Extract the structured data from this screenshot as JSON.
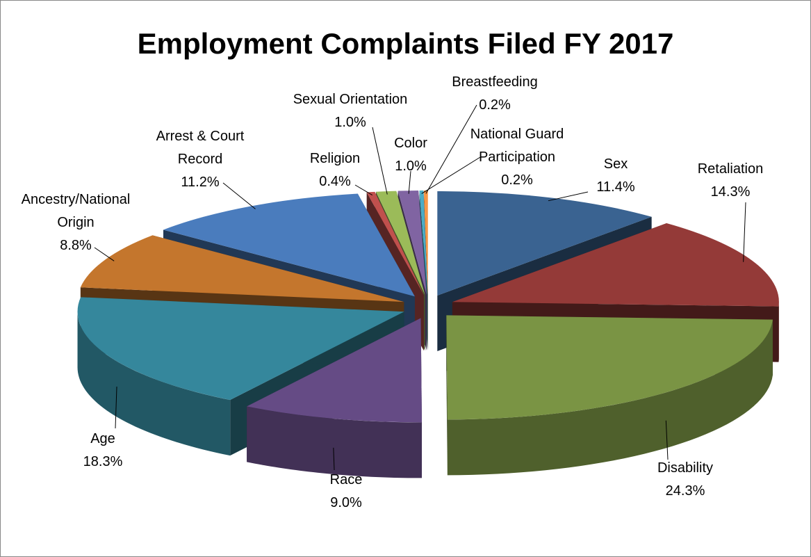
{
  "chart_data": {
    "type": "pie3d",
    "title": "Employment Complaints Filed FY 2017",
    "categories": [
      "Sex",
      "Retaliation",
      "Disability",
      "Race",
      "Age",
      "Ancestry/National Origin",
      "Arrest & Court Record",
      "Religion",
      "Sexual Orientation",
      "Color",
      "National Guard Participation",
      "Breastfeeding"
    ],
    "values": [
      11.4,
      14.3,
      24.3,
      9.0,
      18.3,
      8.8,
      11.2,
      0.4,
      1.0,
      1.0,
      0.2,
      0.2
    ],
    "value_labels": [
      "11.4%",
      "14.3%",
      "24.3%",
      "9.0%",
      "18.3%",
      "8.8%",
      "11.2%",
      "0.4%",
      "1.0%",
      "1.0%",
      "0.2%",
      "0.2%"
    ],
    "colors": [
      "#3a6391",
      "#943a38",
      "#7a9444",
      "#654b85",
      "#35879c",
      "#c4762d",
      "#4a7cbd",
      "#c0504d",
      "#9bbb59",
      "#8064a2",
      "#4bacc6",
      "#f79646"
    ]
  }
}
